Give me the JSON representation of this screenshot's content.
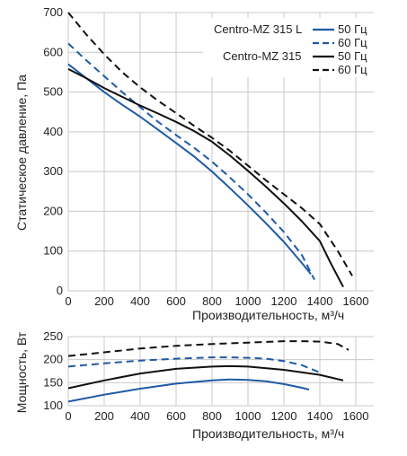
{
  "colors": {
    "blue": "#1f5aa6",
    "black": "#111111",
    "grid": "#c8c8c8"
  },
  "legend": {
    "model_l": "Centro-MZ 315 L",
    "model": "Centro-MZ 315",
    "hz50": "50 Гц",
    "hz60": "60 Гц"
  },
  "chart_data": [
    {
      "type": "line",
      "xlabel": "Производительность, м³/ч",
      "ylabel": "Статическое давление, Па",
      "xlim": [
        0,
        1700
      ],
      "ylim": [
        0,
        700
      ],
      "x_ticks": [
        0,
        200,
        400,
        600,
        800,
        1000,
        1200,
        1400,
        1600
      ],
      "y_ticks": [
        0,
        100,
        200,
        300,
        400,
        500,
        600,
        700
      ],
      "grid": true,
      "legend_position": "top-right",
      "series": [
        {
          "model": "Centro-MZ 315 L",
          "freq": "50 Гц",
          "color": "#1f5aa6",
          "dashed": false,
          "x": [
            0,
            100,
            200,
            300,
            400,
            500,
            600,
            700,
            800,
            900,
            1000,
            1100,
            1200,
            1300,
            1350
          ],
          "y": [
            570,
            535,
            500,
            468,
            438,
            405,
            372,
            338,
            300,
            258,
            215,
            170,
            123,
            70,
            42
          ]
        },
        {
          "model": "Centro-MZ 315 L",
          "freq": "60 Гц",
          "color": "#1f5aa6",
          "dashed": false,
          "x": [
            0,
            100,
            200,
            300,
            400,
            500,
            600,
            700,
            800,
            900,
            1000,
            1100,
            1200,
            1300,
            1370
          ],
          "y": [
            622,
            580,
            540,
            500,
            462,
            425,
            392,
            360,
            325,
            285,
            243,
            197,
            148,
            90,
            28
          ],
          "dashed_override": true
        },
        {
          "model": "Centro-MZ 315",
          "freq": "50 Гц",
          "color": "#111111",
          "dashed": false,
          "x": [
            0,
            100,
            200,
            300,
            400,
            500,
            600,
            700,
            800,
            900,
            1000,
            1100,
            1200,
            1300,
            1400,
            1460,
            1530
          ],
          "y": [
            558,
            535,
            510,
            488,
            466,
            446,
            425,
            402,
            375,
            340,
            302,
            262,
            220,
            175,
            125,
            70,
            10
          ]
        },
        {
          "model": "Centro-MZ 315",
          "freq": "60 Гц",
          "color": "#111111",
          "dashed": true,
          "x": [
            0,
            100,
            200,
            300,
            400,
            500,
            600,
            700,
            800,
            900,
            1000,
            1100,
            1200,
            1300,
            1400,
            1500,
            1580
          ],
          "y": [
            700,
            645,
            595,
            550,
            512,
            478,
            447,
            415,
            385,
            352,
            315,
            278,
            243,
            208,
            168,
            100,
            38
          ]
        }
      ]
    },
    {
      "type": "line",
      "xlabel": "Производительность, м³/ч",
      "ylabel": "Мощность, Вт",
      "xlim": [
        0,
        1700
      ],
      "ylim": [
        100,
        250
      ],
      "x_ticks": [
        0,
        200,
        400,
        600,
        800,
        1000,
        1200,
        1400,
        1600
      ],
      "y_ticks": [
        100,
        150,
        200,
        250
      ],
      "grid": true,
      "series": [
        {
          "model": "Centro-MZ 315 L",
          "freq": "50 Гц",
          "color": "#1f5aa6",
          "dashed": false,
          "x": [
            0,
            200,
            400,
            600,
            800,
            900,
            1000,
            1100,
            1200,
            1300,
            1340
          ],
          "y": [
            109,
            124,
            137,
            148,
            155,
            157,
            156,
            153,
            147,
            139,
            135
          ]
        },
        {
          "model": "Centro-MZ 315 L",
          "freq": "60 Гц",
          "color": "#1f5aa6",
          "dashed": true,
          "x": [
            0,
            200,
            400,
            600,
            800,
            900,
            1000,
            1100,
            1200,
            1300,
            1400
          ],
          "y": [
            185,
            192,
            198,
            202,
            205,
            205,
            204,
            202,
            197,
            188,
            172
          ]
        },
        {
          "model": "Centro-MZ 315",
          "freq": "50 Гц",
          "color": "#111111",
          "dashed": false,
          "x": [
            0,
            200,
            400,
            600,
            800,
            900,
            1000,
            1200,
            1400,
            1530
          ],
          "y": [
            138,
            155,
            170,
            180,
            185,
            186,
            185,
            178,
            167,
            155
          ]
        },
        {
          "model": "Centro-MZ 315",
          "freq": "60 Гц",
          "color": "#111111",
          "dashed": true,
          "x": [
            0,
            200,
            400,
            600,
            800,
            1000,
            1200,
            1300,
            1400,
            1500,
            1560
          ],
          "y": [
            208,
            216,
            224,
            230,
            234,
            237,
            240,
            240,
            239,
            234,
            221
          ]
        }
      ]
    }
  ]
}
